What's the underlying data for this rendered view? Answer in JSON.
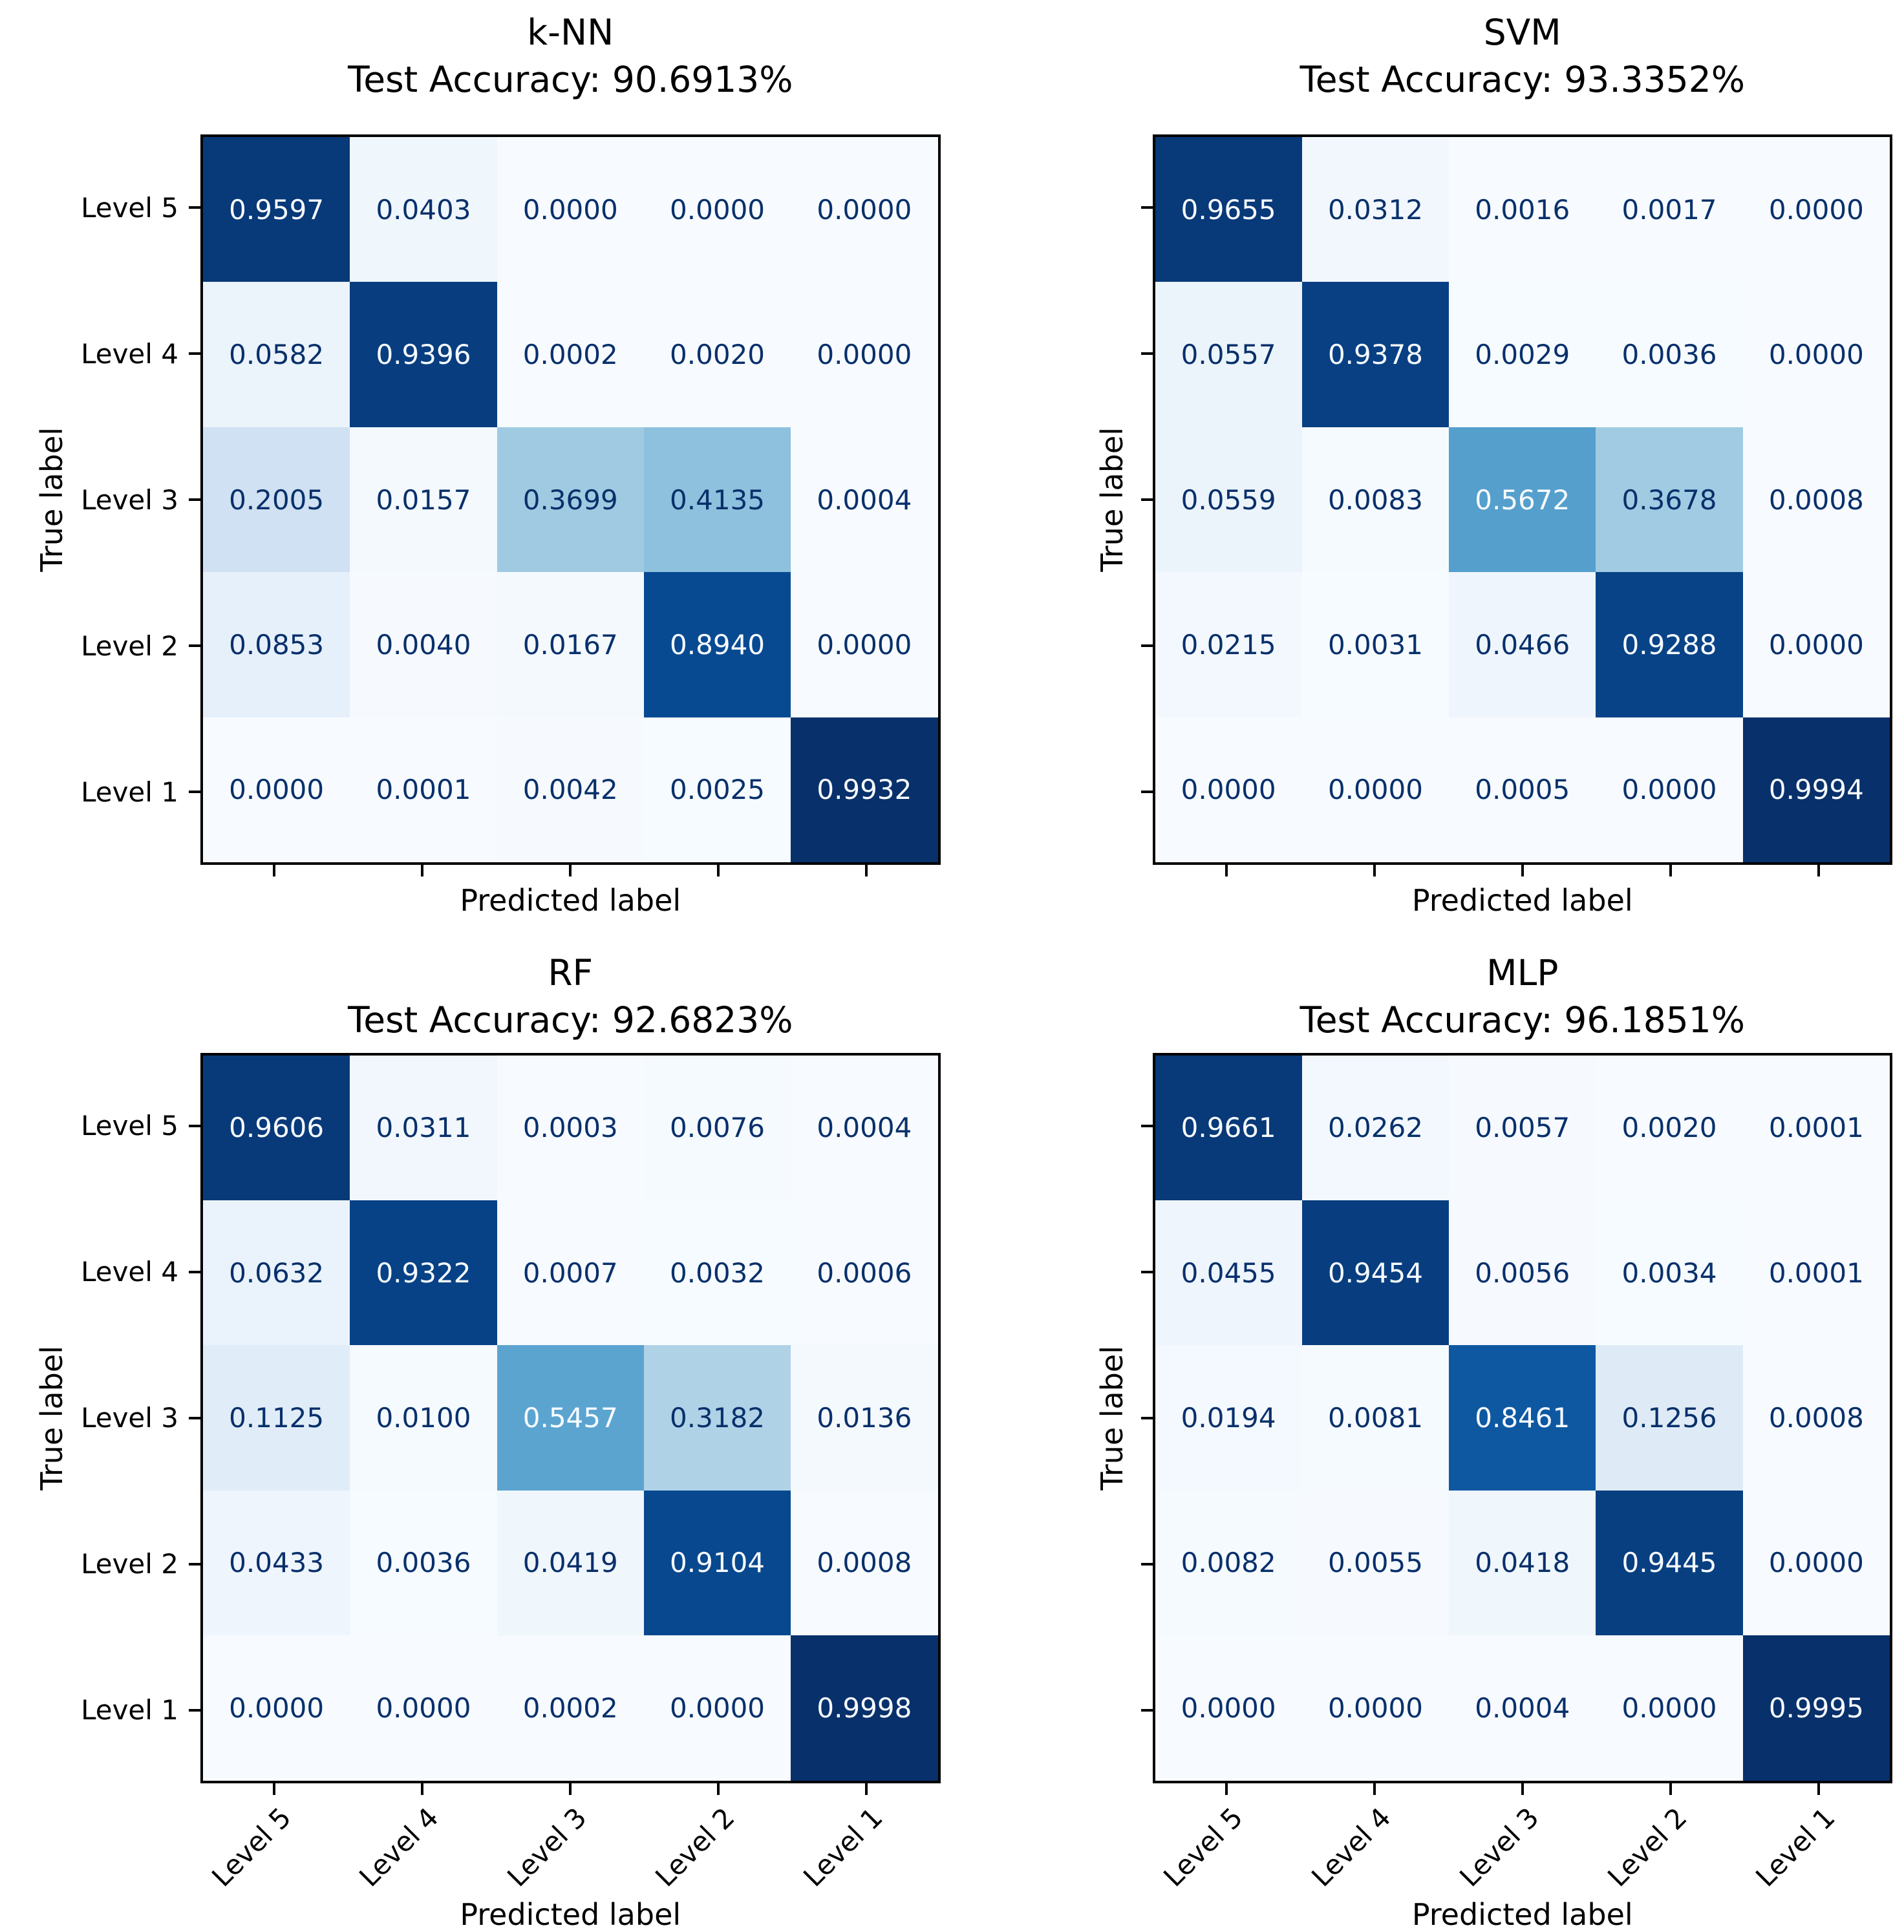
{
  "figure": {
    "background": "#ffffff",
    "colormap": "Blues",
    "cell_text_dark": "#08306b",
    "cell_text_light": "#f7fbff",
    "axis_color": "#000000"
  },
  "chart_data": [
    {
      "type": "heatmap",
      "title": "k-NN",
      "subtitle": "Test Accuracy: 90.6913%",
      "xlabel": "Predicted label",
      "ylabel": "True label",
      "rows": [
        "Level 5",
        "Level 4",
        "Level 3",
        "Level 2",
        "Level 1"
      ],
      "cols": [
        "Level 5",
        "Level 4",
        "Level 3",
        "Level 2",
        "Level 1"
      ],
      "values": [
        [
          0.9597,
          0.0403,
          0.0,
          0.0,
          0.0
        ],
        [
          0.0582,
          0.9396,
          0.0002,
          0.002,
          0.0
        ],
        [
          0.2005,
          0.0157,
          0.3699,
          0.4135,
          0.0004
        ],
        [
          0.0853,
          0.004,
          0.0167,
          0.894,
          0.0
        ],
        [
          0.0,
          0.0001,
          0.0042,
          0.0025,
          0.9932
        ]
      ],
      "show_row_tick_labels": true,
      "show_col_tick_labels": false
    },
    {
      "type": "heatmap",
      "title": "SVM",
      "subtitle": "Test Accuracy: 93.3352%",
      "xlabel": "Predicted label",
      "ylabel": "True label",
      "rows": [
        "Level 5",
        "Level 4",
        "Level 3",
        "Level 2",
        "Level 1"
      ],
      "cols": [
        "Level 5",
        "Level 4",
        "Level 3",
        "Level 2",
        "Level 1"
      ],
      "values": [
        [
          0.9655,
          0.0312,
          0.0016,
          0.0017,
          0.0
        ],
        [
          0.0557,
          0.9378,
          0.0029,
          0.0036,
          0.0
        ],
        [
          0.0559,
          0.0083,
          0.5672,
          0.3678,
          0.0008
        ],
        [
          0.0215,
          0.0031,
          0.0466,
          0.9288,
          0.0
        ],
        [
          0.0,
          0.0,
          0.0005,
          0.0,
          0.9994
        ]
      ],
      "show_row_tick_labels": false,
      "show_col_tick_labels": false
    },
    {
      "type": "heatmap",
      "title": "RF",
      "subtitle": "Test Accuracy: 92.6823%",
      "xlabel": "Predicted label",
      "ylabel": "True label",
      "rows": [
        "Level 5",
        "Level 4",
        "Level 3",
        "Level 2",
        "Level 1"
      ],
      "cols": [
        "Level 5",
        "Level 4",
        "Level 3",
        "Level 2",
        "Level 1"
      ],
      "values": [
        [
          0.9606,
          0.0311,
          0.0003,
          0.0076,
          0.0004
        ],
        [
          0.0632,
          0.9322,
          0.0007,
          0.0032,
          0.0006
        ],
        [
          0.1125,
          0.01,
          0.5457,
          0.3182,
          0.0136
        ],
        [
          0.0433,
          0.0036,
          0.0419,
          0.9104,
          0.0008
        ],
        [
          0.0,
          0.0,
          0.0002,
          0.0,
          0.9998
        ]
      ],
      "show_row_tick_labels": true,
      "show_col_tick_labels": true
    },
    {
      "type": "heatmap",
      "title": "MLP",
      "subtitle": "Test Accuracy: 96.1851%",
      "xlabel": "Predicted label",
      "ylabel": "True label",
      "rows": [
        "Level 5",
        "Level 4",
        "Level 3",
        "Level 2",
        "Level 1"
      ],
      "cols": [
        "Level 5",
        "Level 4",
        "Level 3",
        "Level 2",
        "Level 1"
      ],
      "values": [
        [
          0.9661,
          0.0262,
          0.0057,
          0.002,
          0.0001
        ],
        [
          0.0455,
          0.9454,
          0.0056,
          0.0034,
          0.0001
        ],
        [
          0.0194,
          0.0081,
          0.8461,
          0.1256,
          0.0008
        ],
        [
          0.0082,
          0.0055,
          0.0418,
          0.9445,
          0.0
        ],
        [
          0.0,
          0.0,
          0.0004,
          0.0,
          0.9995
        ]
      ],
      "show_row_tick_labels": false,
      "show_col_tick_labels": true
    }
  ]
}
